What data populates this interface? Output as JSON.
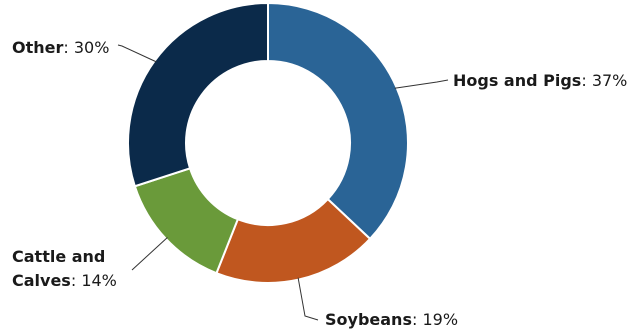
{
  "chart_data": {
    "type": "pie",
    "variant": "donut",
    "legend": "none",
    "slices": [
      {
        "name": "Hogs and Pigs",
        "value": 37,
        "label": "37%",
        "color": "#2a6496"
      },
      {
        "name": "Soybeans",
        "value": 19,
        "label": "19%",
        "color": "#c0571f"
      },
      {
        "name": "Cattle and Calves",
        "value": 14,
        "label": "14%",
        "color": "#6a9a3a"
      },
      {
        "name": "Other",
        "value": 30,
        "label": "30%",
        "color": "#0b2a4a"
      }
    ]
  }
}
